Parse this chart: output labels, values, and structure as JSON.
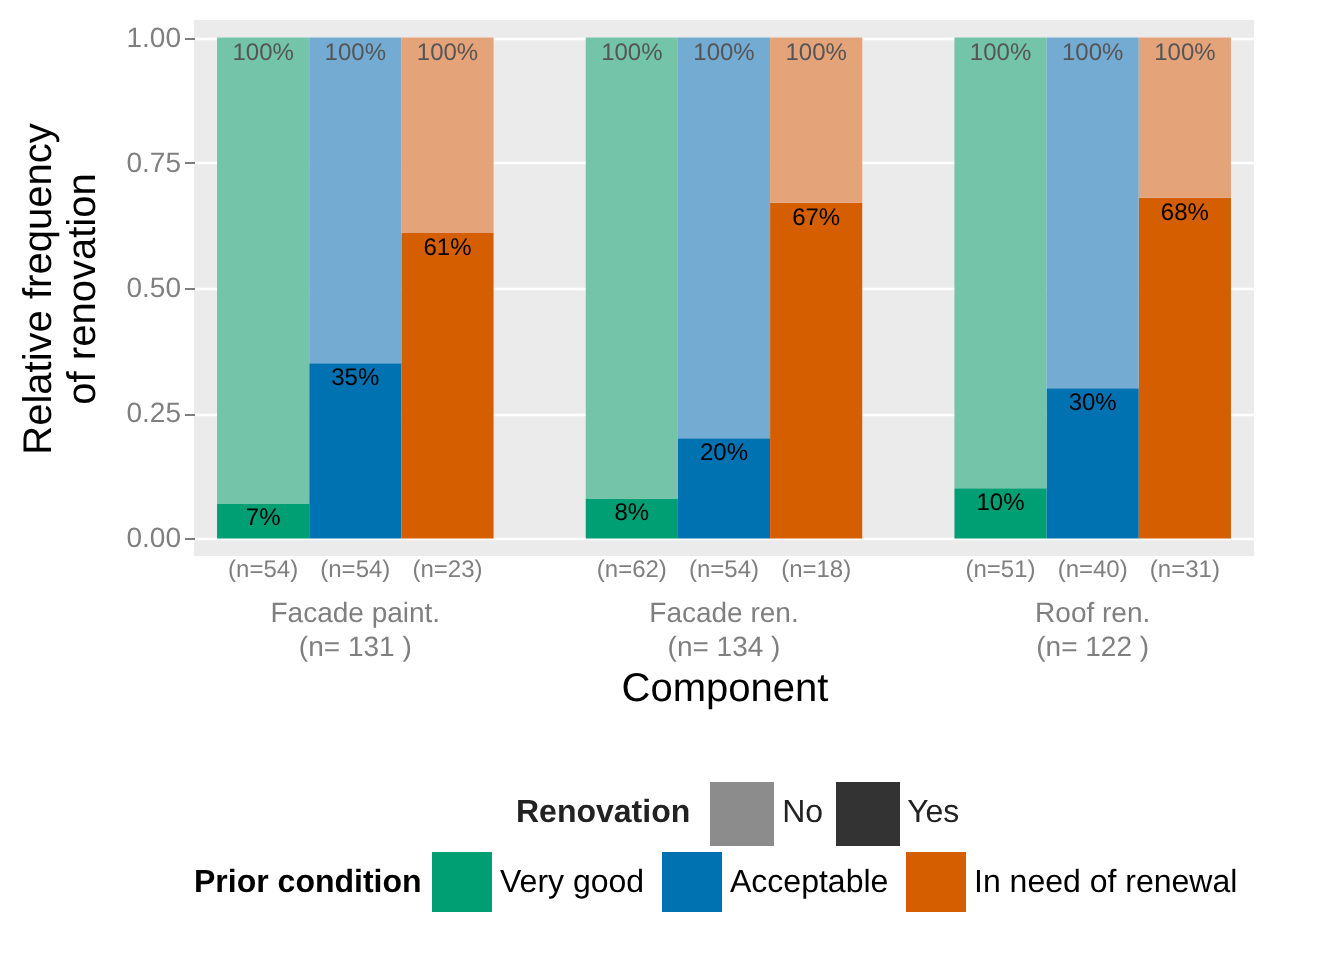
{
  "chart_data": {
    "type": "bar",
    "stacked": true,
    "xlabel": "Component",
    "ylabel": "Relative frequency\nof renovation",
    "legend_title": "Prior condition",
    "legend": "bottom",
    "grid": true,
    "categories": [
      "(n=54)",
      "(n=54)",
      "(n=23)",
      "(n=62)",
      "(n=54)",
      "(n=18)",
      "(n=51)",
      "(n=40)",
      "(n=31)"
    ],
    "series": [
      {
        "name": "Very good",
        "color": "#009e73",
        "values": [
          0.07,
          null,
          null,
          0.08,
          null,
          null,
          0.1,
          null,
          null
        ],
        "value_labels": [
          "7%",
          null,
          null,
          "8%",
          null,
          null,
          "10%",
          null,
          null
        ]
      },
      {
        "name": "Acceptable",
        "color": "#0072b2",
        "values": [
          null,
          0.35,
          null,
          null,
          0.2,
          null,
          null,
          0.3,
          null
        ],
        "value_labels": [
          null,
          "35%",
          null,
          null,
          "20%",
          null,
          null,
          "30%",
          null
        ]
      },
      {
        "name": "In need of renewal",
        "color": "#d55e00",
        "values": [
          null,
          null,
          0.61,
          null,
          null,
          0.67,
          null,
          null,
          0.68
        ],
        "value_labels": [
          null,
          null,
          "61%",
          null,
          null,
          "67%",
          null,
          null,
          "68%"
        ]
      },
      {
        "colors": [
          "#73c4a9",
          "#73abd2",
          "#e5a37a",
          "#73c4a9",
          "#73abd2",
          "#e5a37a",
          "#73c4a9",
          "#73abd2",
          "#e5a37a"
        ],
        "values": [
          0.93,
          0.65,
          0.39,
          0.92,
          0.8,
          0.33,
          0.9,
          0.7,
          0.32
        ]
      }
    ],
    "totals": [
      "100%",
      "100%",
      "100%",
      "100%",
      "100%",
      "100%",
      "100%",
      "100%",
      "100%"
    ],
    "ylim": [
      -0.035,
      1.035
    ],
    "yticks": [
      {
        "value": 0,
        "label": "0.00"
      },
      {
        "value": 0.25,
        "label": "0.25"
      },
      {
        "value": 0.5,
        "label": "0.50"
      },
      {
        "value": 0.75,
        "label": "0.75"
      },
      {
        "value": 1,
        "label": "1.00"
      }
    ],
    "annotations": [
      "Facade paint.\n(n=  131 )",
      "Facade ren.\n(n=  134 )",
      "Roof ren.\n(n=  122 )",
      "Renovation",
      "No",
      "Yes"
    ]
  }
}
